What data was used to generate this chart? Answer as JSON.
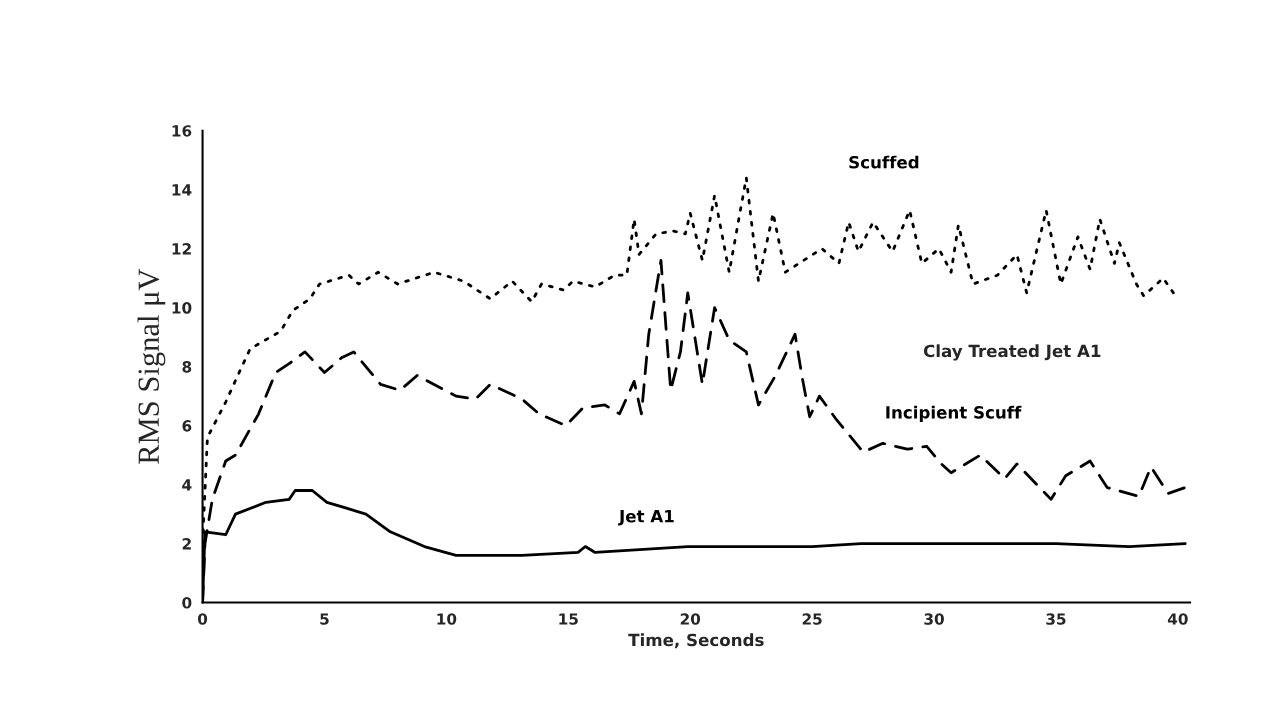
{
  "chart_data": {
    "type": "line",
    "xlabel": "Time, Seconds",
    "ylabel": "RMS Signal μV",
    "xlim": [
      0,
      40.5
    ],
    "ylim": [
      0,
      16
    ],
    "xticks": [
      0,
      5,
      10,
      15,
      20,
      25,
      30,
      35,
      40
    ],
    "yticks": [
      0,
      2,
      4,
      6,
      8,
      10,
      12,
      14,
      16
    ],
    "grid": false,
    "legend": false,
    "marker": "none",
    "annotations": [
      "Clay Treated Jet A1"
    ],
    "series": [
      {
        "name": "Scuffed",
        "color": "#000000",
        "line_style": "dotted",
        "x": [
          0,
          0.2,
          0.95,
          1.5,
          1.95,
          3.2,
          3.7,
          4.4,
          4.8,
          6.0,
          6.4,
          7.2,
          8.0,
          9.5,
          10.7,
          11.8,
          12.7,
          13.5,
          13.9,
          14.8,
          15.2,
          16.1,
          16.9,
          17.4,
          17.7,
          17.9,
          18.6,
          19.3,
          19.8,
          20.0,
          20.5,
          21.0,
          21.6,
          22.3,
          22.8,
          23.4,
          23.9,
          25.4,
          26.1,
          26.5,
          26.9,
          27.5,
          28.3,
          29.0,
          29.5,
          30.2,
          30.7,
          31.0,
          31.6,
          32.6,
          33.4,
          33.8,
          34.6,
          35.2,
          35.9,
          36.4,
          36.8,
          37.4,
          37.6,
          38.3,
          38.6,
          39.4,
          39.9
        ],
        "values": [
          2.0,
          5.6,
          6.8,
          7.8,
          8.6,
          9.2,
          9.9,
          10.3,
          10.8,
          11.1,
          10.8,
          11.2,
          10.8,
          11.2,
          10.9,
          10.3,
          10.9,
          10.2,
          10.8,
          10.6,
          10.9,
          10.7,
          11.1,
          11.1,
          13.0,
          11.8,
          12.5,
          12.6,
          12.5,
          13.2,
          11.6,
          13.8,
          11.2,
          14.4,
          10.9,
          13.2,
          11.2,
          12.0,
          11.5,
          12.9,
          11.9,
          12.9,
          11.9,
          13.3,
          11.5,
          12.0,
          11.2,
          12.8,
          10.8,
          11.1,
          11.8,
          10.5,
          13.3,
          10.8,
          12.4,
          11.3,
          13.0,
          11.5,
          12.2,
          10.8,
          10.4,
          11.0,
          10.4
        ]
      },
      {
        "name": "Incipient Scuff",
        "color": "#000000",
        "line_style": "dashed",
        "x": [
          0,
          0.1,
          0.4,
          0.95,
          1.35,
          2.3,
          3.0,
          3.55,
          4.2,
          5.0,
          5.7,
          6.2,
          7.3,
          8.1,
          8.8,
          10.4,
          11.2,
          11.8,
          13.1,
          13.8,
          14.9,
          15.6,
          16.5,
          17.1,
          17.7,
          18.0,
          18.3,
          18.8,
          19.2,
          19.6,
          19.9,
          20.5,
          21.0,
          21.6,
          22.3,
          22.8,
          23.5,
          24.3,
          24.6,
          24.9,
          25.3,
          26.0,
          27.1,
          27.9,
          28.9,
          29.7,
          30.3,
          30.7,
          31.9,
          32.9,
          33.4,
          34.8,
          35.4,
          36.4,
          37.1,
          38.4,
          38.9,
          39.6,
          40.3
        ],
        "values": [
          0,
          2.0,
          3.5,
          4.8,
          5.0,
          6.4,
          7.8,
          8.1,
          8.5,
          7.8,
          8.3,
          8.5,
          7.4,
          7.2,
          7.7,
          7.0,
          6.9,
          7.4,
          6.9,
          6.4,
          6.0,
          6.6,
          6.7,
          6.4,
          7.5,
          6.4,
          9.1,
          11.6,
          7.2,
          8.5,
          10.5,
          7.4,
          10.0,
          8.9,
          8.5,
          6.7,
          7.7,
          9.1,
          7.6,
          6.3,
          7.0,
          6.2,
          5.1,
          5.4,
          5.2,
          5.3,
          4.7,
          4.4,
          5.0,
          4.2,
          4.7,
          3.5,
          4.3,
          4.8,
          3.9,
          3.6,
          4.6,
          3.7,
          3.9
        ]
      },
      {
        "name": "Jet A1",
        "color": "#000000",
        "line_style": "solid",
        "x": [
          0,
          0.1,
          0.95,
          1.35,
          2.6,
          3.55,
          3.8,
          4.5,
          5.1,
          5.9,
          6.7,
          7.7,
          9.1,
          10.4,
          13.1,
          15.4,
          15.7,
          16.1,
          19.9,
          22.0,
          25.0,
          27.0,
          30.0,
          32.0,
          35.0,
          38.0,
          40.3
        ],
        "values": [
          0,
          2.4,
          2.3,
          3.0,
          3.4,
          3.5,
          3.8,
          3.8,
          3.4,
          3.2,
          3.0,
          2.4,
          1.9,
          1.6,
          1.6,
          1.7,
          1.9,
          1.7,
          1.9,
          1.9,
          1.9,
          2.0,
          2.0,
          2.0,
          2.0,
          1.9,
          2.0
        ]
      }
    ]
  }
}
